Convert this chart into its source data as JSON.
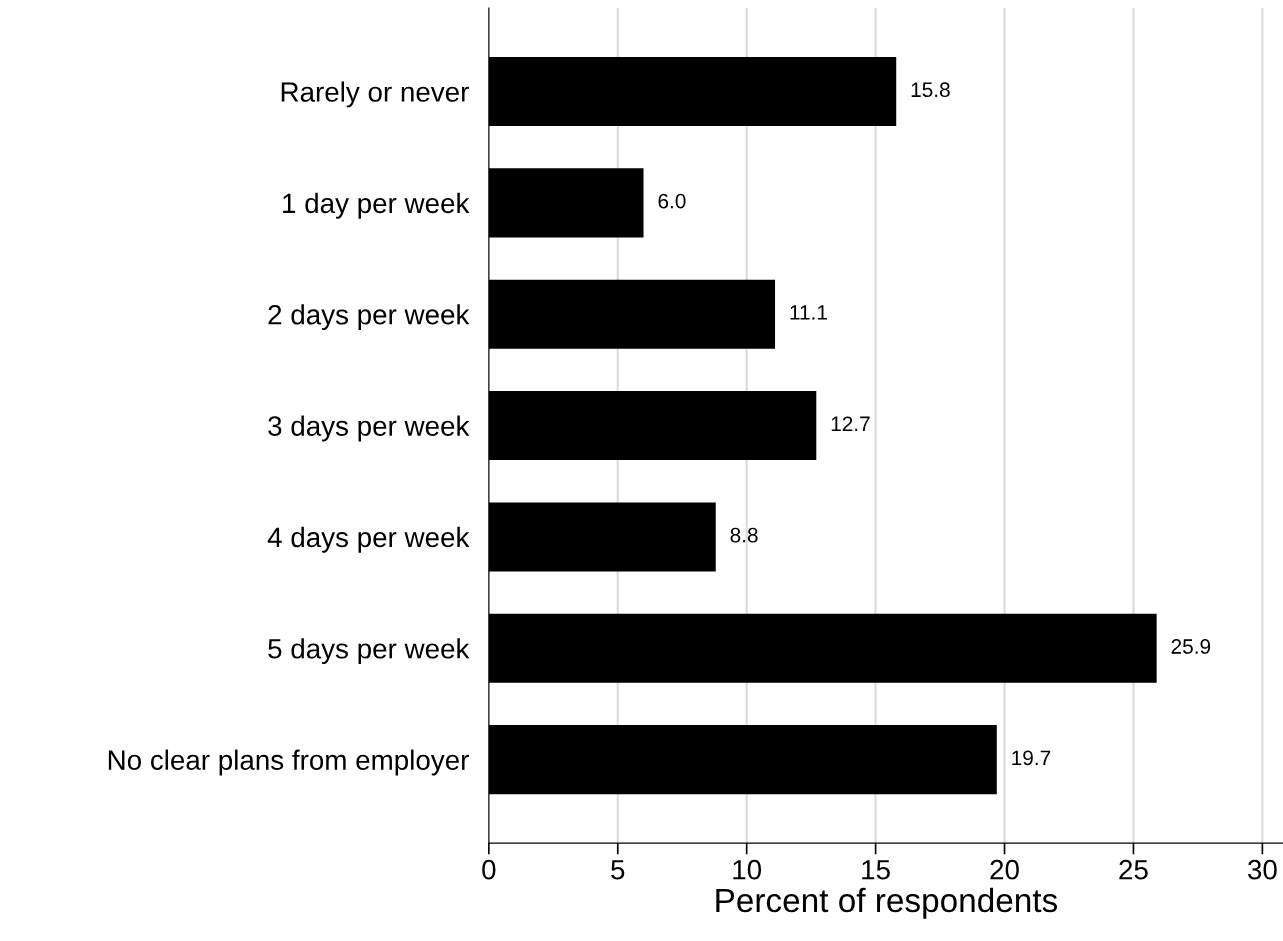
{
  "chart_data": {
    "type": "bar",
    "orientation": "horizontal",
    "xlabel": "Percent of respondents",
    "categories": [
      "Rarely or never",
      "1 day per week",
      "2 days per week",
      "3 days per week",
      "4 days per week",
      "5 days per week",
      "No clear plans from employer"
    ],
    "values": [
      15.8,
      6.0,
      11.1,
      12.7,
      8.8,
      25.9,
      19.7
    ],
    "value_labels": [
      "15.8",
      "6.0",
      "11.1",
      "12.7",
      "8.8",
      "25.9",
      "19.7"
    ],
    "color": "#000000",
    "xlim": [
      0,
      30.8
    ],
    "xticks": [
      0,
      5,
      10,
      15,
      20,
      25,
      30
    ],
    "grid": "x"
  }
}
